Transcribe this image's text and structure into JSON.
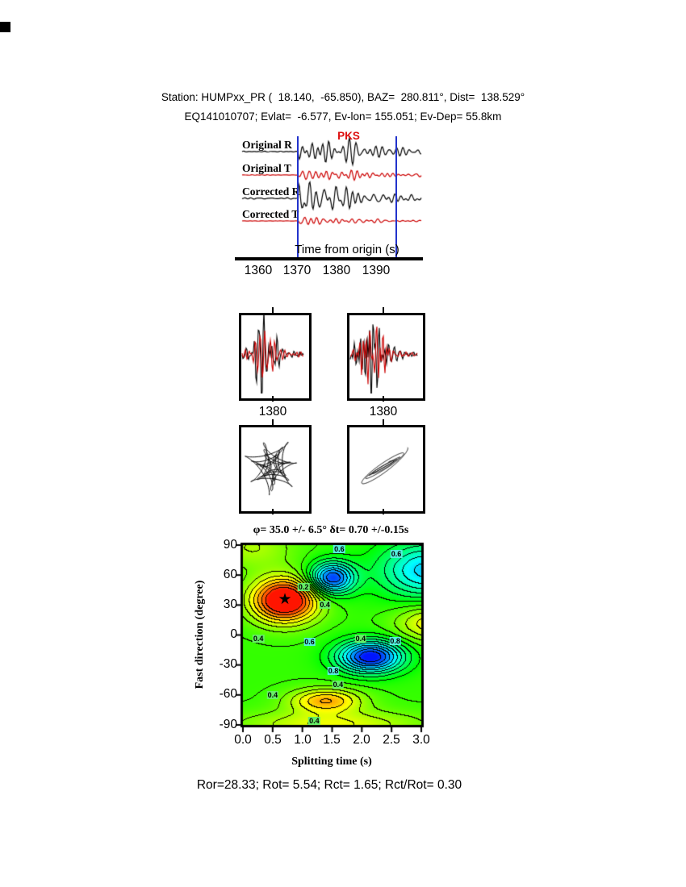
{
  "header": {
    "line1": "Station: HUMPxx_PR (  18.140,  -65.850), BAZ=  280.811°, Dist=  138.529°",
    "line2": "EQ141010707; Evlat=  -6.577, Ev-lon= 155.051; Ev-Dep= 55.8km"
  },
  "footer": {
    "stats": "Ror=28.33; Rot= 5.54; Rct= 1.65; Rct/Rot= 0.30"
  },
  "chart_data": [
    {
      "id": "seismogram-traces",
      "type": "line",
      "phase_label": "PKS",
      "xlabel": "Time from origin (s)",
      "xtick_labels": [
        "1360",
        "1370",
        "1380",
        "1390"
      ],
      "xlim": [
        1354.2,
        1401.5
      ],
      "window_s": [
        1370,
        1395
      ],
      "window_color": "#2233cc",
      "traces": [
        {
          "label": "Original R",
          "color": "#000000",
          "amp": 11,
          "seed": 11
        },
        {
          "label": "Original T",
          "color": "#cc0000",
          "amp": 4.5,
          "seed": 23
        },
        {
          "label": "Corrected R",
          "color": "#000000",
          "amp": 11,
          "seed": 37
        },
        {
          "label": "Corrected T",
          "color": "#cc0000",
          "amp": 3,
          "seed": 41
        }
      ]
    },
    {
      "id": "windowed-waveform-left",
      "type": "line",
      "xlabel": "1380",
      "series_colors": [
        "#000000",
        "#cc0000"
      ]
    },
    {
      "id": "windowed-waveform-right",
      "type": "line",
      "xlabel": "1380",
      "series_colors": [
        "#000000",
        "#cc0000"
      ]
    },
    {
      "id": "particle-motion-original",
      "type": "scatter",
      "color": "#000000"
    },
    {
      "id": "particle-motion-corrected",
      "type": "scatter",
      "color": "#000000"
    },
    {
      "id": "splitting-error-surface",
      "type": "heatmap",
      "title": "φ= 35.0 +/- 6.5° δt= 0.70 +/-0.15s",
      "xlabel": "Splitting time (s)",
      "ylabel": "Fast direction (degree)",
      "xtick_labels": [
        "0.0",
        "0.5",
        "1.0",
        "1.5",
        "2.0",
        "2.5",
        "3.0"
      ],
      "ytick_labels": [
        "90",
        "60",
        "30",
        "0",
        "-30",
        "-60",
        "-90"
      ],
      "xlim": [
        0,
        3
      ],
      "ylim": [
        -90,
        90
      ],
      "best_fit": {
        "fast_direction_deg": 35.0,
        "fast_direction_err_deg": 6.5,
        "split_time_s": 0.7,
        "split_time_err_s": 0.15
      },
      "best_fit_marker": "★",
      "colormap": "reversed-jet (red=minimum at best fit, blue=maximum)",
      "contour_labels": [
        {
          "x": 1.62,
          "y": 86,
          "text": "0.6",
          "bg": "#55eedd"
        },
        {
          "x": 2.58,
          "y": 81,
          "text": "0.6",
          "bg": "#55eedd"
        },
        {
          "x": 1.02,
          "y": 48,
          "text": "0.2",
          "bg": "#66ee66"
        },
        {
          "x": 1.38,
          "y": 30,
          "text": "0.4",
          "bg": "#66ee66"
        },
        {
          "x": 0.26,
          "y": -4,
          "text": "0.4",
          "bg": "#66ee66"
        },
        {
          "x": 1.12,
          "y": -7,
          "text": "0.6",
          "bg": "#55eedd"
        },
        {
          "x": 1.98,
          "y": -4,
          "text": "0.4",
          "bg": "#66ee66"
        },
        {
          "x": 2.56,
          "y": -6,
          "text": "0.8",
          "bg": "#55eedd"
        },
        {
          "x": 1.52,
          "y": -36,
          "text": "0.8",
          "bg": "#55eedd"
        },
        {
          "x": 1.6,
          "y": -50,
          "text": "0.4",
          "bg": "#66ee66"
        },
        {
          "x": 0.5,
          "y": -60,
          "text": "0.4",
          "bg": "#66ee66"
        },
        {
          "x": 1.2,
          "y": -86,
          "text": "0.4",
          "bg": "#66ee66"
        }
      ],
      "surface_approx": {
        "base": 0.45,
        "levels": 18,
        "gaussians": [
          {
            "x": 0.7,
            "y": 35,
            "sx": 0.55,
            "sy": 22,
            "a": -0.55
          },
          {
            "x": 1.5,
            "y": 57,
            "sx": 0.38,
            "sy": 16,
            "a": 0.5
          },
          {
            "x": 2.15,
            "y": -22,
            "sx": 0.55,
            "sy": 16,
            "a": 0.55
          },
          {
            "x": 3.1,
            "y": 65,
            "sx": 0.8,
            "sy": 28,
            "a": 0.35
          },
          {
            "x": 1.4,
            "y": -66,
            "sx": 0.6,
            "sy": 12,
            "a": -0.28
          },
          {
            "x": 3.2,
            "y": 12,
            "sx": 0.6,
            "sy": 18,
            "a": -0.22
          },
          {
            "x": 1.5,
            "y": -90,
            "sx": 1.5,
            "sy": 14,
            "a": -0.18
          },
          {
            "x": 0.15,
            "y": 88,
            "sx": 0.7,
            "sy": 22,
            "a": -0.12
          }
        ]
      }
    }
  ]
}
